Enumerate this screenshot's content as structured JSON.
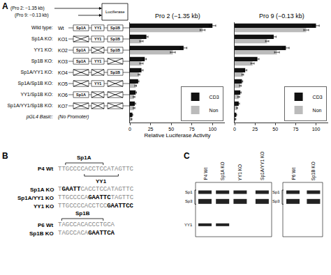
{
  "chart_data": [
    {
      "type": "bar",
      "orientation": "horizontal",
      "title": "Pro 2 (−1.35 kb)",
      "x_label": "Relative Luciferase Activity",
      "categories": [
        "Wild type:",
        "Sp1A KO:",
        "YY1 KO:",
        "Sp1B KO:",
        "Sp1A/YY1 KO:",
        "Sp1A/Sp1B KO:",
        "YY1/Sp1B KO:",
        "Sp1A/YY1/Sp1B KO:",
        "pGL4 Basic:"
      ],
      "series": [
        {
          "name": "CD3",
          "color": "#111111",
          "values": [
            100,
            20,
            65,
            18,
            14,
            10,
            7,
            6,
            3
          ],
          "errors": [
            4,
            2,
            4,
            2,
            2,
            1,
            1,
            1,
            0.5
          ]
        },
        {
          "name": "Non",
          "color": "#bbbbbb",
          "values": [
            88,
            14,
            52,
            14,
            11,
            7,
            5,
            5,
            2
          ],
          "errors": [
            3,
            2,
            3,
            2,
            1,
            1,
            1,
            1,
            0.5
          ]
        }
      ],
      "xlim": [
        0,
        115
      ],
      "xticks": [
        0,
        25,
        50,
        75,
        100
      ],
      "grid": false,
      "legend": "lower right"
    },
    {
      "type": "bar",
      "orientation": "horizontal",
      "title": "Pro 9 (−0.13 kb)",
      "categories": [
        "Wild type:",
        "Sp1A KO:",
        "YY1 KO:",
        "Sp1B KO:",
        "Sp1A/YY1 KO:",
        "Sp1A/Sp1B KO:",
        "YY1/Sp1B KO:",
        "Sp1A/YY1/Sp1B KO:",
        "pGL4 Basic:"
      ],
      "series": [
        {
          "name": "CD3",
          "color": "#111111",
          "values": [
            100,
            48,
            63,
            28,
            13,
            9,
            7,
            5,
            2
          ],
          "errors": [
            4,
            3,
            4,
            2,
            2,
            1,
            1,
            1,
            0.5
          ]
        },
        {
          "name": "Non",
          "color": "#bbbbbb",
          "values": [
            88,
            40,
            52,
            22,
            10,
            7,
            5,
            3,
            1
          ],
          "errors": [
            3,
            2,
            3,
            2,
            1,
            1,
            1,
            0.5,
            0.5
          ]
        }
      ],
      "xlim": [
        0,
        115
      ],
      "xticks": [
        0,
        25,
        50,
        75,
        100
      ],
      "grid": false,
      "legend": "lower right",
      "tick_labels": "x"
    }
  ],
  "annotations": {
    "panel_labels": [
      "A",
      "B",
      "C"
    ],
    "promoters": [
      "(Pro 2: −1.35 kb)",
      "(Pro 9: −0.13 kb)"
    ],
    "reporter": "Luciferase",
    "sites": [
      "Sp1A",
      "YY1",
      "Sp1B"
    ],
    "rows": [
      {
        "label": "Wt",
        "knocked_out": [
          false,
          false,
          false
        ]
      },
      {
        "label": "KO1",
        "knocked_out": [
          true,
          false,
          false
        ]
      },
      {
        "label": "KO2",
        "knocked_out": [
          false,
          true,
          false
        ]
      },
      {
        "label": "KO3",
        "knocked_out": [
          false,
          false,
          true
        ]
      },
      {
        "label": "KO4",
        "knocked_out": [
          true,
          true,
          false
        ]
      },
      {
        "label": "KO5",
        "knocked_out": [
          true,
          false,
          true
        ]
      },
      {
        "label": "KO6",
        "knocked_out": [
          false,
          true,
          true
        ]
      },
      {
        "label": "KO7",
        "knocked_out": [
          true,
          true,
          true
        ]
      },
      {
        "label": "(No Promoter)",
        "knocked_out": null
      }
    ],
    "sequences": [
      {
        "label": "P4 Wt",
        "text": "TTGCCCCACCTCCATAGTTC"
      },
      {
        "label": "Sp1A KO",
        "text": "TGAATTCACCTCCATAGTTC",
        "bold": "GAATT"
      },
      {
        "label": "Sp1A/YY1 KO",
        "text": "TTGCCCCAGAATTCTAGTTC",
        "bold": "GAATTC"
      },
      {
        "label": "YY1 KO",
        "text": "TTGCCCCACCTCCGAATTCC",
        "bold": "GAATTCC"
      },
      {
        "label": "P6 Wt",
        "text": "TAGCCACACCCTGCA"
      },
      {
        "label": "Sp1B KO",
        "text": "TAGCCACAGAATTCA",
        "bold": "GAATTCA"
      }
    ],
    "sequence_sites": [
      {
        "text": "Sp1A",
        "row": "P4 Wt",
        "side": "above",
        "start": 2,
        "end": 12
      },
      {
        "text": "YY1",
        "row": "P4 Wt",
        "side": "below",
        "start": 7,
        "end": 16
      },
      {
        "text": "Sp1B",
        "row": "P6 Wt",
        "side": "above",
        "start": 1,
        "end": 12
      }
    ],
    "gels": [
      {
        "bands": [
          "Sp1",
          "Sp3",
          "YY1"
        ],
        "lanes": [
          {
            "label": "P4 Wt",
            "bands": [
              "Sp1",
              "Sp3",
              "YY1"
            ]
          },
          {
            "label": "Sp1A KO",
            "bands": [
              "Sp1",
              "Sp3",
              "YY1"
            ]
          },
          {
            "label": "YY1 KO",
            "bands": [
              "Sp1",
              "Sp3"
            ]
          },
          {
            "label": "Sp1A/YY1 KO",
            "bands": [
              "Sp1",
              "Sp3"
            ]
          }
        ]
      },
      {
        "bands": [
          "Sp1",
          "Sp3"
        ],
        "lanes": [
          {
            "label": "P6 Wt",
            "bands": [
              "Sp1",
              "Sp3"
            ]
          },
          {
            "label": "Sp1B KO",
            "bands": [
              "Sp1",
              "Sp3"
            ]
          }
        ]
      }
    ]
  }
}
